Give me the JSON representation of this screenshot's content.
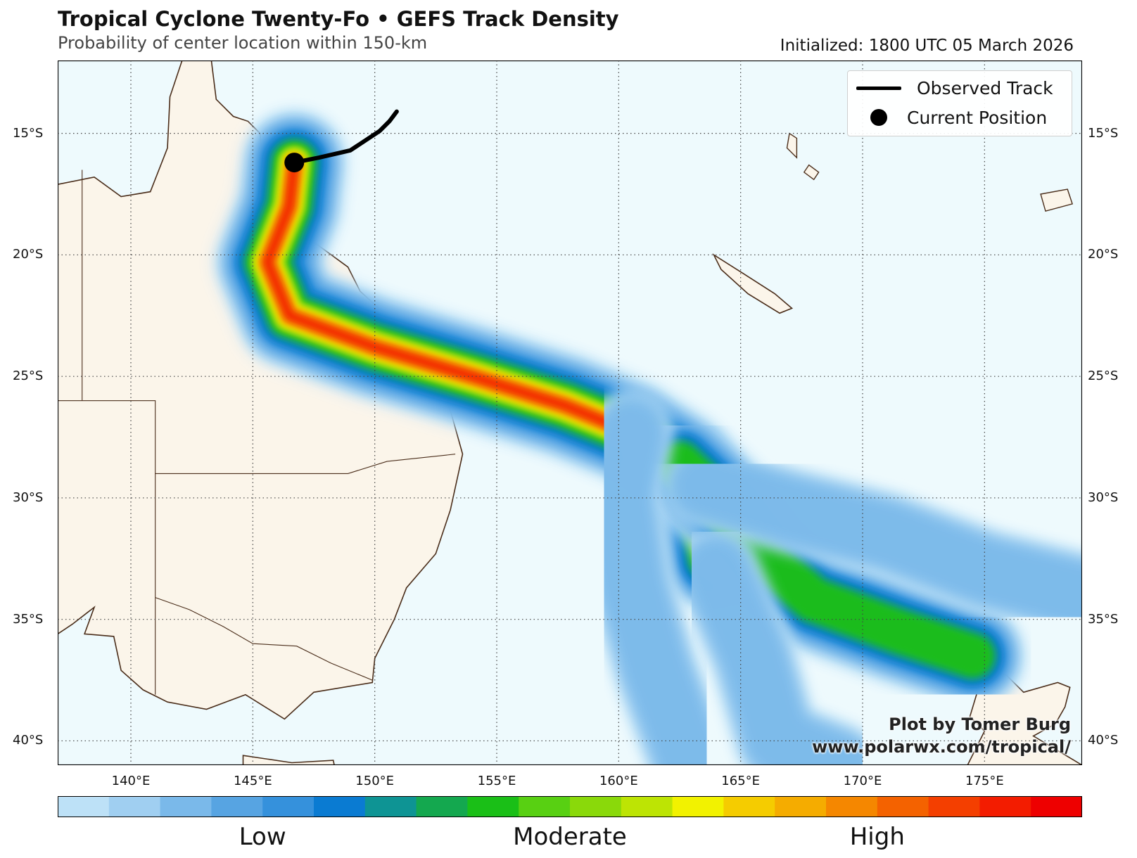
{
  "header": {
    "title": "Tropical Cyclone Twenty-Fo • GEFS Track Density",
    "subtitle": "Probability of center location within 150-km",
    "initialized": "Initialized: 1800 UTC 05 March 2026"
  },
  "map": {
    "lon_range": [
      137,
      179
    ],
    "lat_range": [
      -41,
      -12
    ],
    "lat_ticks": [
      "15°S",
      "20°S",
      "25°S",
      "30°S",
      "35°S",
      "40°S"
    ],
    "lat_values": [
      -15,
      -20,
      -25,
      -30,
      -35,
      -40
    ],
    "lon_ticks": [
      "140°E",
      "145°E",
      "150°E",
      "155°E",
      "160°E",
      "165°E",
      "170°E",
      "175°E"
    ],
    "lon_values": [
      140,
      145,
      150,
      155,
      160,
      165,
      170,
      175
    ],
    "grid": "dotted",
    "ocean_color": "#eefafd",
    "land_color": "#fbf5ea",
    "coast_color": "#4a2d1a",
    "current_position": {
      "lon": 146.7,
      "lat": -16.2
    },
    "observed_track": [
      {
        "lon": 146.7,
        "lat": -16.2
      },
      {
        "lon": 147.7,
        "lat": -16.0
      },
      {
        "lon": 149.0,
        "lat": -15.7
      },
      {
        "lon": 150.2,
        "lat": -14.9
      },
      {
        "lon": 150.6,
        "lat": -14.5
      },
      {
        "lon": 150.9,
        "lat": -14.1
      }
    ],
    "density_tracks": [
      {
        "name": "main",
        "points": [
          [
            146.7,
            -16.2
          ],
          [
            146.5,
            -18.0
          ],
          [
            145.6,
            -20.3
          ],
          [
            146.5,
            -22.5
          ],
          [
            150.0,
            -23.8
          ],
          [
            154.0,
            -25.0
          ],
          [
            157.8,
            -26.2
          ],
          [
            160.5,
            -27.3
          ],
          [
            162.5,
            -28.6
          ],
          [
            163.5,
            -30.5
          ],
          [
            163.8,
            -32.5
          ]
        ],
        "peak": 1.0
      },
      {
        "name": "east",
        "points": [
          [
            162.5,
            -28.6
          ],
          [
            164.5,
            -30.5
          ],
          [
            166.0,
            -32.5
          ],
          [
            168.0,
            -34.2
          ],
          [
            171.5,
            -35.5
          ],
          [
            174.5,
            -36.5
          ]
        ],
        "peak": 0.55
      },
      {
        "name": "southwest",
        "points": [
          [
            160.5,
            -27.3
          ],
          [
            160.0,
            -30.0
          ],
          [
            160.5,
            -33.5
          ],
          [
            161.5,
            -37.0
          ],
          [
            163.0,
            -41.0
          ]
        ],
        "peak": 0.22
      },
      {
        "name": "far-east",
        "points": [
          [
            163.5,
            -29.5
          ],
          [
            167.0,
            -30.5
          ],
          [
            171.0,
            -31.5
          ],
          [
            175.0,
            -33.0
          ],
          [
            179.0,
            -34.0
          ]
        ],
        "peak": 0.22
      },
      {
        "name": "south",
        "points": [
          [
            164.0,
            -33.0
          ],
          [
            165.5,
            -36.5
          ],
          [
            166.5,
            -40.0
          ],
          [
            169.0,
            -41.0
          ]
        ],
        "peak": 0.18
      }
    ]
  },
  "legend": {
    "track_label": "Observed Track",
    "position_label": "Current Position"
  },
  "credit": {
    "line1": "Plot by Tomer Burg",
    "line2": "www.polarwx.com/tropical/"
  },
  "colorbar": {
    "colors": [
      "#bde1f7",
      "#a0cff1",
      "#7ab9ea",
      "#57a4e2",
      "#3591dc",
      "#0a7bd2",
      "#0e9494",
      "#14a84f",
      "#1abf17",
      "#58d012",
      "#8ad90a",
      "#bde404",
      "#f2f200",
      "#f5cc00",
      "#f5ac00",
      "#f58700",
      "#f46200",
      "#f43f00",
      "#f31c00",
      "#ee0000"
    ],
    "labels": [
      {
        "text": "Low",
        "pos": 0.2
      },
      {
        "text": "Moderate",
        "pos": 0.5
      },
      {
        "text": "High",
        "pos": 0.8
      }
    ]
  }
}
